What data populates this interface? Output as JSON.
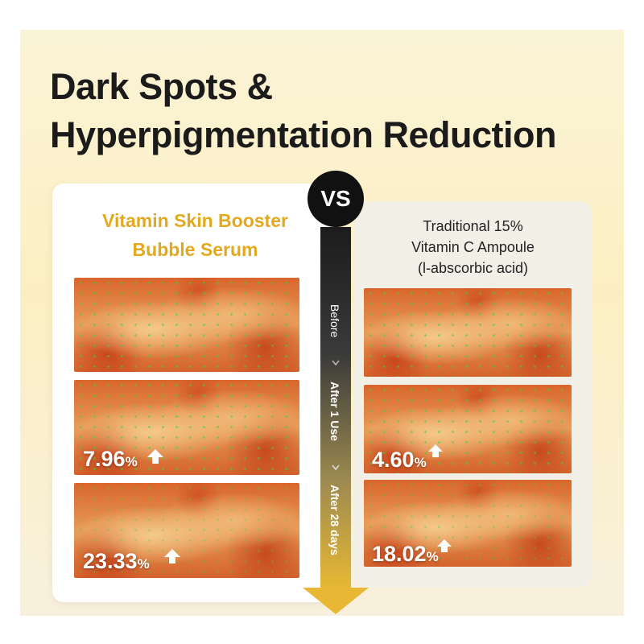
{
  "header": {
    "title": [
      "Dark Spots &",
      "Hyperpigmentation Reduction"
    ]
  },
  "left": {
    "heading": [
      "Vitamin Skin Booster",
      "Bubble Serum"
    ],
    "results": [
      {
        "value": "7.96",
        "unit": "%"
      },
      {
        "value": "23.33",
        "unit": "%"
      }
    ]
  },
  "right": {
    "heading": [
      "Traditional 15%",
      "Vitamin C Ampoule",
      "(l-abscorbic acid)"
    ],
    "results": [
      {
        "value": "4.60",
        "unit": "%"
      },
      {
        "value": "18.02",
        "unit": "%"
      }
    ]
  },
  "versus": "VS",
  "timeline": [
    "Before",
    "After 1 Use",
    "After 28 days"
  ]
}
